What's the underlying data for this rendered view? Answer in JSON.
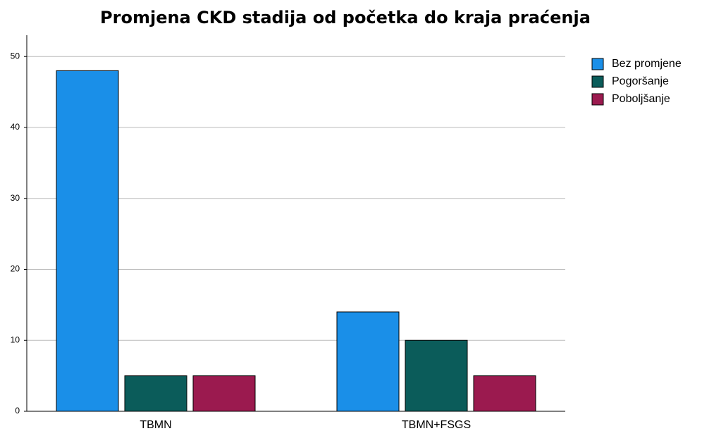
{
  "chart_data": {
    "type": "bar",
    "title": "Promjena CKD stadija od početka do kraja praćenja",
    "categories": [
      "TBMN",
      "TBMN+FSGS"
    ],
    "series": [
      {
        "name": "Bez promjene",
        "color": "#1a8fe8",
        "values": [
          48,
          14
        ]
      },
      {
        "name": "Pogoršanje",
        "color": "#0b5c5a",
        "values": [
          5,
          10
        ]
      },
      {
        "name": "Poboljšanje",
        "color": "#9b1a4f",
        "values": [
          5,
          5
        ]
      }
    ],
    "ylim": [
      0,
      53
    ],
    "yticks": [
      0,
      10,
      20,
      30,
      40,
      50
    ],
    "grid": true,
    "legend": "right"
  }
}
